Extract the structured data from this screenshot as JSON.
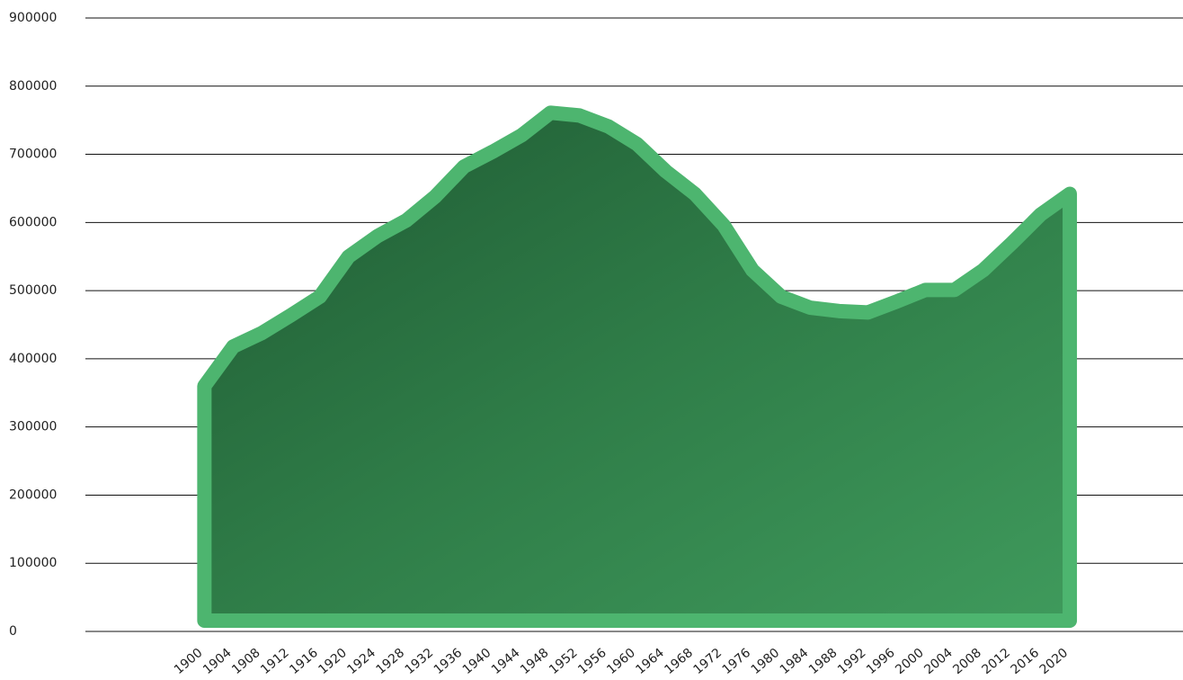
{
  "chart_data": {
    "type": "area",
    "x": [
      1900,
      1904,
      1908,
      1912,
      1916,
      1920,
      1924,
      1928,
      1932,
      1936,
      1940,
      1944,
      1948,
      1952,
      1956,
      1960,
      1964,
      1968,
      1972,
      1976,
      1980,
      1984,
      1988,
      1992,
      1996,
      2000,
      2004,
      2008,
      2012,
      2016,
      2020
    ],
    "values": [
      360000,
      418000,
      438000,
      464000,
      491000,
      550000,
      580000,
      603000,
      638000,
      682000,
      704000,
      728000,
      761000,
      757000,
      741000,
      715000,
      675000,
      642000,
      596000,
      530000,
      491000,
      475000,
      470000,
      468000,
      484000,
      501000,
      501000,
      530000,
      570000,
      612000,
      642000
    ],
    "color": "#4db56f",
    "xlim": [
      1883.5,
      2035.7
    ],
    "xticks": [
      1900,
      1904,
      1908,
      1912,
      1916,
      1920,
      1924,
      1928,
      1932,
      1936,
      1940,
      1944,
      1948,
      1952,
      1956,
      1960,
      1964,
      1968,
      1972,
      1976,
      1980,
      1984,
      1988,
      1992,
      1996,
      2000,
      2004,
      2008,
      2012,
      2016,
      2020
    ],
    "ylim": [
      0,
      900000
    ],
    "yticks": [
      0,
      100000,
      200000,
      300000,
      400000,
      500000,
      600000,
      700000,
      800000,
      900000
    ],
    "grid": true
  }
}
